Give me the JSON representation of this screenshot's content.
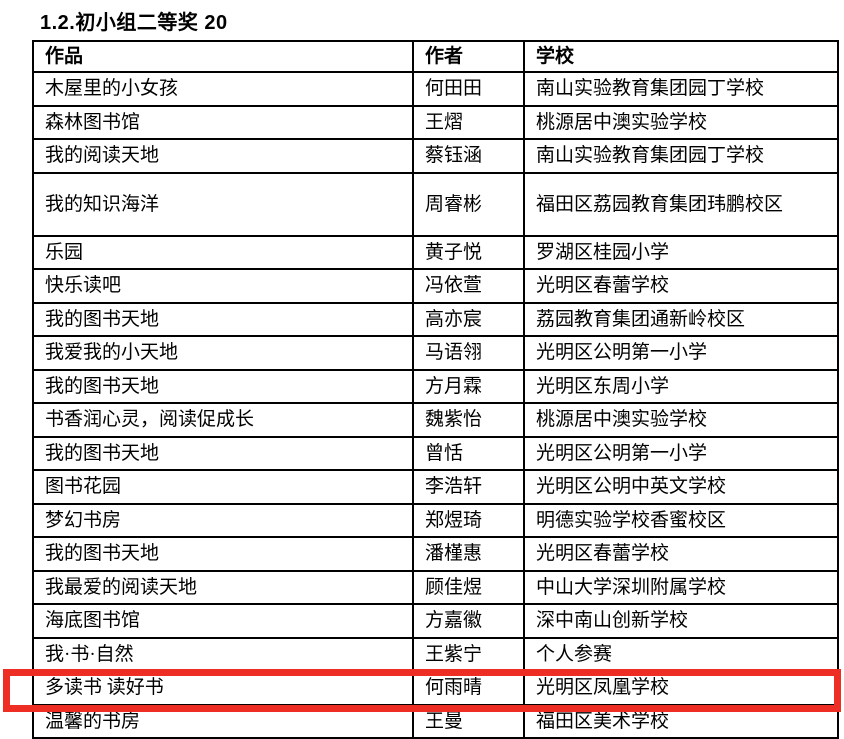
{
  "page": {
    "title": "1.2.初小组二等奖 20"
  },
  "colors": {
    "background": "#ffffff",
    "text": "#000000",
    "table_border": "#000000",
    "highlight_border": "#ee2d24"
  },
  "table": {
    "headers": {
      "work": "作品",
      "author": "作者",
      "school": "学校"
    },
    "rows": [
      {
        "work": "木屋里的小女孩",
        "author": "何田田",
        "school": "南山实验教育集团园丁学校"
      },
      {
        "work": "森林图书馆",
        "author": "王熠",
        "school": "桃源居中澳实验学校"
      },
      {
        "work": "我的阅读天地",
        "author": "蔡钰涵",
        "school": "南山实验教育集团园丁学校"
      },
      {
        "work": "我的知识海洋",
        "author": "周睿彬",
        "school": "福田区荔园教育集团玮鹏校区"
      },
      {
        "work": "乐园",
        "author": "黄子悦",
        "school": "罗湖区桂园小学"
      },
      {
        "work": "快乐读吧",
        "author": "冯依萱",
        "school": "光明区春蕾学校"
      },
      {
        "work": "我的图书天地",
        "author": "高亦宸",
        "school": "荔园教育集团通新岭校区"
      },
      {
        "work": "我爱我的小天地",
        "author": "马语翎",
        "school": "光明区公明第一小学"
      },
      {
        "work": "我的图书天地",
        "author": "方月霖",
        "school": "光明区东周小学"
      },
      {
        "work": "书香润心灵，阅读促成长",
        "author": "魏紫怡",
        "school": "桃源居中澳实验学校"
      },
      {
        "work": "我的图书天地",
        "author": "曾恬",
        "school": "光明区公明第一小学"
      },
      {
        "work": "图书花园",
        "author": "李浩轩",
        "school": "光明区公明中英文学校"
      },
      {
        "work": "梦幻书房",
        "author": "郑煜琦",
        "school": "明德实验学校香蜜校区"
      },
      {
        "work": "我的图书天地",
        "author": "潘槿惠",
        "school": "光明区春蕾学校"
      },
      {
        "work": "我最爱的阅读天地",
        "author": "顾佳煜",
        "school": "中山大学深圳附属学校"
      },
      {
        "work": "海底图书馆",
        "author": "方嘉徽",
        "school": "深中南山创新学校"
      },
      {
        "work": "我·书·自然",
        "author": "王紫宁",
        "school": "个人参赛"
      },
      {
        "work": "多读书 读好书",
        "author": "何雨晴",
        "school": "光明区凤凰学校"
      }
    ],
    "highlighted_row_index": 17,
    "clipped_row": {
      "work": "温馨的书房",
      "author": "王曼",
      "school": "福田区美术学校",
      "visibility": "row cut off at bottom edge of page; only glyph tops visible, text approximate"
    }
  }
}
